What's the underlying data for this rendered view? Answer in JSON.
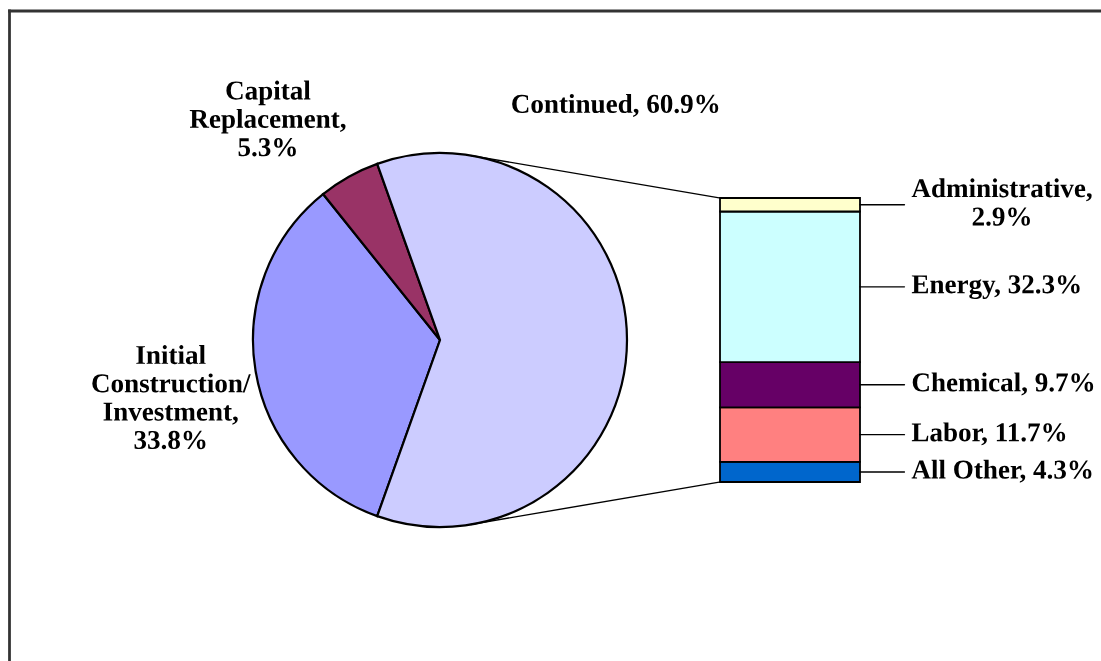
{
  "chart_data": [
    {
      "type": "pie",
      "categories": [
        null,
        null,
        null
      ],
      "values": [
        33.8,
        5.3,
        60.9
      ],
      "colors": [
        "#9999ff",
        "#993366",
        "#ccccff"
      ],
      "value_labels": [
        "Initial\nConstruction/\nInvestment,\n33.8%",
        "Capital\nReplacement,\n5.3%",
        "Continued, 60.9%"
      ]
    },
    {
      "type": "bar",
      "stacked": true,
      "categories": [
        null
      ],
      "series": [
        {
          "color": "#0066cc",
          "values": [
            4.3
          ],
          "value_labels": [
            "All Other, 4.3%"
          ]
        },
        {
          "color": "#ff8080",
          "values": [
            11.7
          ],
          "value_labels": [
            "Labor, 11.7%"
          ]
        },
        {
          "color": "#660066",
          "values": [
            9.7
          ],
          "value_labels": [
            "Chemical, 9.7%"
          ]
        },
        {
          "color": "#ccffff",
          "values": [
            32.3
          ],
          "value_labels": [
            "Energy, 32.3%"
          ]
        },
        {
          "color": "#ffffcc",
          "values": [
            2.9
          ],
          "value_labels": [
            "Administrative,\n2.9%"
          ]
        }
      ]
    }
  ]
}
